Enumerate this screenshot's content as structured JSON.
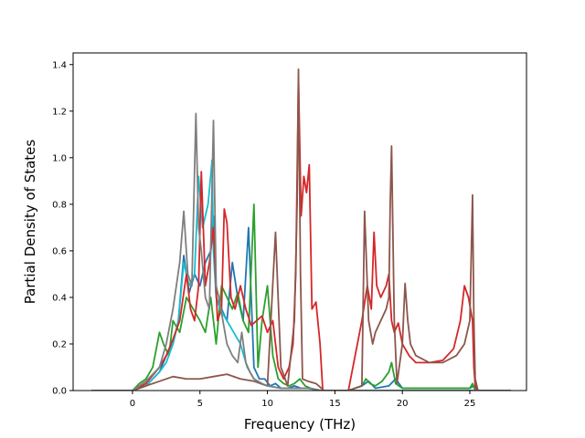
{
  "chart_data": {
    "type": "line",
    "title": "",
    "xlabel": "Frequency (THz)",
    "ylabel": "Partial Density of States",
    "xlim": [
      -4.4,
      29.2
    ],
    "ylim": [
      0,
      1.45
    ],
    "xticks": [
      0,
      5,
      10,
      15,
      20,
      25
    ],
    "xtick_labels": [
      "0",
      "5",
      "10",
      "15",
      "20",
      "25"
    ],
    "yticks": [
      0.0,
      0.2,
      0.4,
      0.6,
      0.8,
      1.0,
      1.2,
      1.4
    ],
    "ytick_labels": [
      "0.0",
      "0.2",
      "0.4",
      "0.6",
      "0.8",
      "1.0",
      "1.2",
      "1.4"
    ],
    "grid": false,
    "legend": "none",
    "series": [
      {
        "color": "#1f77b4",
        "x": [
          -3,
          0,
          1,
          2,
          2.5,
          3,
          3.4,
          3.8,
          4.2,
          4.6,
          5.0,
          5.4,
          5.8,
          6.0,
          6.2,
          6.6,
          7.0,
          7.4,
          7.8,
          8.2,
          8.6,
          9.0,
          9.4,
          9.8,
          10.2,
          10.6,
          11,
          11.5,
          12.0,
          12.5,
          13,
          14,
          16,
          17,
          17.5,
          18,
          19,
          19.5,
          20,
          25,
          25.3,
          25.6,
          28
        ],
        "y": [
          0,
          0,
          0.02,
          0.08,
          0.15,
          0.2,
          0.3,
          0.58,
          0.42,
          0.5,
          0.45,
          0.55,
          0.6,
          0.75,
          0.4,
          0.35,
          0.3,
          0.55,
          0.4,
          0.3,
          0.7,
          0.1,
          0.05,
          0.05,
          0.02,
          0.03,
          0.01,
          0.01,
          0.02,
          0.01,
          0.01,
          0,
          0,
          0.02,
          0.04,
          0.01,
          0.02,
          0.05,
          0.01,
          0.01,
          0.02,
          0,
          0
        ]
      },
      {
        "color": "#2ca02c",
        "x": [
          -3,
          0,
          0.5,
          1,
          1.5,
          2.0,
          2.3,
          2.7,
          3.0,
          3.5,
          4.0,
          4.5,
          5.0,
          5.4,
          5.8,
          6.2,
          6.6,
          7.0,
          7.4,
          7.8,
          8.2,
          8.6,
          9.0,
          9.3,
          9.6,
          10.0,
          10.4,
          10.8,
          11.2,
          11.6,
          12.0,
          12.4,
          12.8,
          13.2,
          14,
          16,
          17,
          17.3,
          17.6,
          18,
          18.5,
          19,
          19.2,
          19.5,
          20,
          25,
          25.2,
          25.4,
          28
        ],
        "y": [
          0,
          0,
          0.03,
          0.05,
          0.1,
          0.25,
          0.2,
          0.15,
          0.3,
          0.25,
          0.4,
          0.35,
          0.3,
          0.25,
          0.4,
          0.2,
          0.45,
          0.4,
          0.35,
          0.42,
          0.3,
          0.25,
          0.8,
          0.1,
          0.3,
          0.45,
          0.15,
          0.05,
          0.03,
          0.02,
          0.03,
          0.05,
          0.02,
          0.01,
          0,
          0,
          0.02,
          0.05,
          0.03,
          0.02,
          0.04,
          0.08,
          0.12,
          0.03,
          0.01,
          0.01,
          0.03,
          0,
          0
        ]
      },
      {
        "color": "#17becf",
        "x": [
          -3,
          0,
          1,
          2,
          2.5,
          3.0,
          3.4,
          3.8,
          4.2,
          4.6,
          4.9,
          5.2,
          5.6,
          5.9,
          6.0,
          6.2,
          6.5,
          7.0,
          7.5,
          8.0,
          8.5,
          9.0,
          9.5,
          10,
          11,
          12,
          13,
          14,
          28
        ],
        "y": [
          0,
          0,
          0.02,
          0.08,
          0.12,
          0.2,
          0.3,
          0.55,
          0.45,
          0.5,
          0.92,
          0.7,
          0.8,
          0.99,
          0.6,
          0.4,
          0.35,
          0.3,
          0.25,
          0.2,
          0.1,
          0.05,
          0.03,
          0.02,
          0.01,
          0.01,
          0.01,
          0,
          0
        ]
      },
      {
        "color": "#d62728",
        "x": [
          -3,
          0,
          1,
          2,
          2.5,
          3.0,
          3.5,
          4.0,
          4.3,
          4.6,
          4.9,
          5.1,
          5.4,
          5.7,
          6.0,
          6.3,
          6.6,
          6.8,
          7.0,
          7.3,
          7.6,
          8.0,
          8.4,
          8.8,
          9.2,
          9.6,
          10.0,
          10.4,
          10.8,
          11.2,
          11.6,
          11.9,
          12.1,
          12.3,
          12.5,
          12.7,
          12.9,
          13.1,
          13.3,
          13.6,
          13.9,
          14.1,
          16,
          17.0,
          17.4,
          17.7,
          17.9,
          18.1,
          18.4,
          18.8,
          19.0,
          19.2,
          19.4,
          19.7,
          20.0,
          20.5,
          21,
          22,
          23,
          23.8,
          24.3,
          24.6,
          24.9,
          25.2,
          25.3,
          25.4,
          25.6,
          28
        ],
        "y": [
          0,
          0,
          0.03,
          0.1,
          0.15,
          0.22,
          0.3,
          0.5,
          0.35,
          0.3,
          0.45,
          0.94,
          0.45,
          0.55,
          0.7,
          0.3,
          0.35,
          0.78,
          0.72,
          0.4,
          0.35,
          0.45,
          0.35,
          0.28,
          0.3,
          0.32,
          0.25,
          0.3,
          0.1,
          0.05,
          0.1,
          0.2,
          0.5,
          1.34,
          0.75,
          0.92,
          0.85,
          0.97,
          0.35,
          0.38,
          0.2,
          0,
          0,
          0.3,
          0.45,
          0.35,
          0.68,
          0.45,
          0.4,
          0.45,
          0.5,
          0.3,
          0.25,
          0.29,
          0.2,
          0.15,
          0.12,
          0.12,
          0.13,
          0.18,
          0.3,
          0.45,
          0.4,
          0.3,
          0.1,
          0.02,
          0,
          0
        ]
      },
      {
        "color": "#8c564b",
        "x": [
          -3,
          0,
          1,
          2,
          3,
          4,
          5,
          6,
          7,
          8,
          9,
          10,
          10.6,
          11.0,
          11.5,
          12.0,
          12.2,
          12.3,
          12.45,
          12.6,
          13.0,
          13.6,
          14.2,
          16,
          17.0,
          17.2,
          17.5,
          17.8,
          18.0,
          18.4,
          18.8,
          19.0,
          19.1,
          19.2,
          19.4,
          19.6,
          20.0,
          20.2,
          20.4,
          20.6,
          21,
          22,
          23,
          24,
          24.6,
          25.0,
          25.2,
          25.3,
          25.4,
          25.6,
          28
        ],
        "y": [
          0,
          0,
          0.02,
          0.04,
          0.06,
          0.05,
          0.05,
          0.06,
          0.07,
          0.05,
          0.04,
          0.02,
          0.68,
          0.1,
          0.02,
          0.3,
          0.8,
          1.38,
          0.5,
          0.05,
          0.04,
          0.03,
          0,
          0,
          0.02,
          0.77,
          0.3,
          0.2,
          0.25,
          0.3,
          0.35,
          0.4,
          0.8,
          1.05,
          0.3,
          0.03,
          0.2,
          0.46,
          0.3,
          0.2,
          0.15,
          0.12,
          0.12,
          0.15,
          0.2,
          0.3,
          0.84,
          0.3,
          0.05,
          0,
          0
        ]
      },
      {
        "color": "#7f7f7f",
        "x": [
          -3,
          0,
          1,
          2,
          2.5,
          3.0,
          3.5,
          3.8,
          4.1,
          4.4,
          4.7,
          4.9,
          5.1,
          5.4,
          5.7,
          6.0,
          6.2,
          6.4,
          6.7,
          7.0,
          7.4,
          7.8,
          8.1,
          8.4,
          8.7,
          9.0,
          9.3,
          9.6,
          10,
          11,
          12,
          13,
          14,
          28
        ],
        "y": [
          0,
          0,
          0.04,
          0.1,
          0.2,
          0.35,
          0.55,
          0.77,
          0.5,
          0.45,
          1.19,
          0.7,
          0.6,
          0.4,
          0.35,
          1.16,
          0.45,
          0.4,
          0.3,
          0.2,
          0.15,
          0.12,
          0.25,
          0.12,
          0.08,
          0.05,
          0.04,
          0.03,
          0.02,
          0.01,
          0.01,
          0.01,
          0,
          0
        ]
      }
    ]
  }
}
